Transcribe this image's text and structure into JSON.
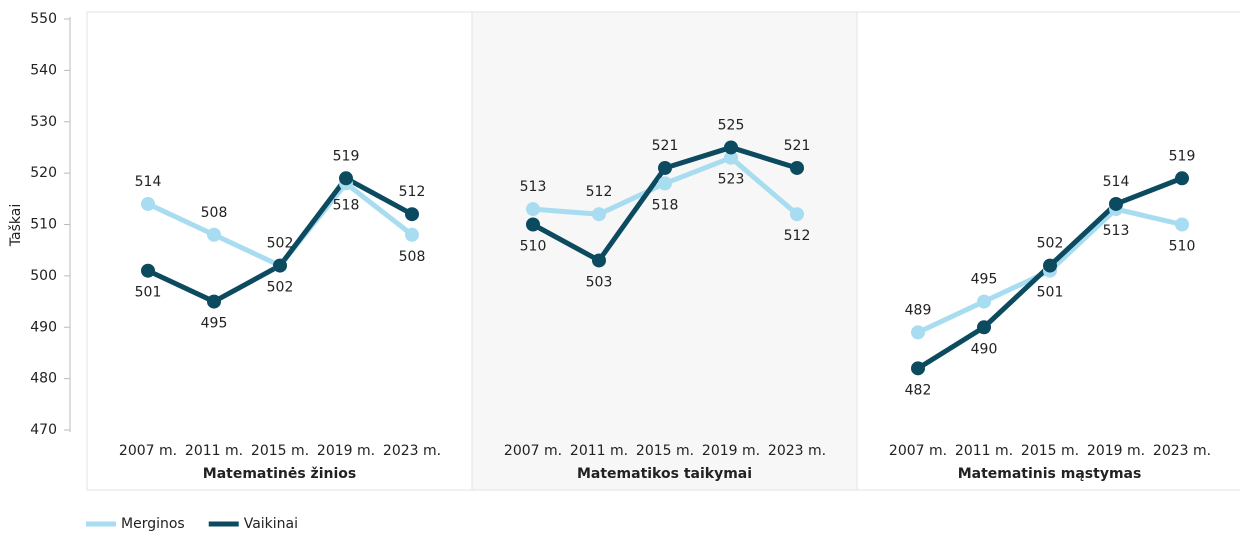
{
  "chart_data": {
    "type": "line",
    "ylabel": "Taškai",
    "ylim": [
      470,
      550
    ],
    "yticks": [
      470,
      480,
      490,
      500,
      510,
      520,
      530,
      540,
      550
    ],
    "groups": [
      {
        "label": "Matematinės žinios",
        "categories": [
          "2007 m.",
          "2011 m.",
          "2015 m.",
          "2019 m.",
          "2023 m."
        ]
      },
      {
        "label": "Matematikos taikymai",
        "categories": [
          "2007 m.",
          "2011 m.",
          "2015 m.",
          "2019 m.",
          "2023 m."
        ]
      },
      {
        "label": "Matematinis mąstymas",
        "categories": [
          "2007 m.",
          "2011 m.",
          "2015 m.",
          "2019 m.",
          "2023 m."
        ]
      }
    ],
    "series": [
      {
        "name": "Merginos",
        "color": "#a8dcf1",
        "values": [
          [
            514,
            508,
            502,
            518,
            508
          ],
          [
            513,
            512,
            518,
            523,
            512
          ],
          [
            489,
            495,
            501,
            513,
            510
          ]
        ]
      },
      {
        "name": "Vaikinai",
        "color": "#0b4a5f",
        "values": [
          [
            501,
            495,
            502,
            519,
            512
          ],
          [
            510,
            503,
            521,
            525,
            521
          ],
          [
            482,
            490,
            502,
            514,
            519
          ]
        ]
      }
    ]
  }
}
